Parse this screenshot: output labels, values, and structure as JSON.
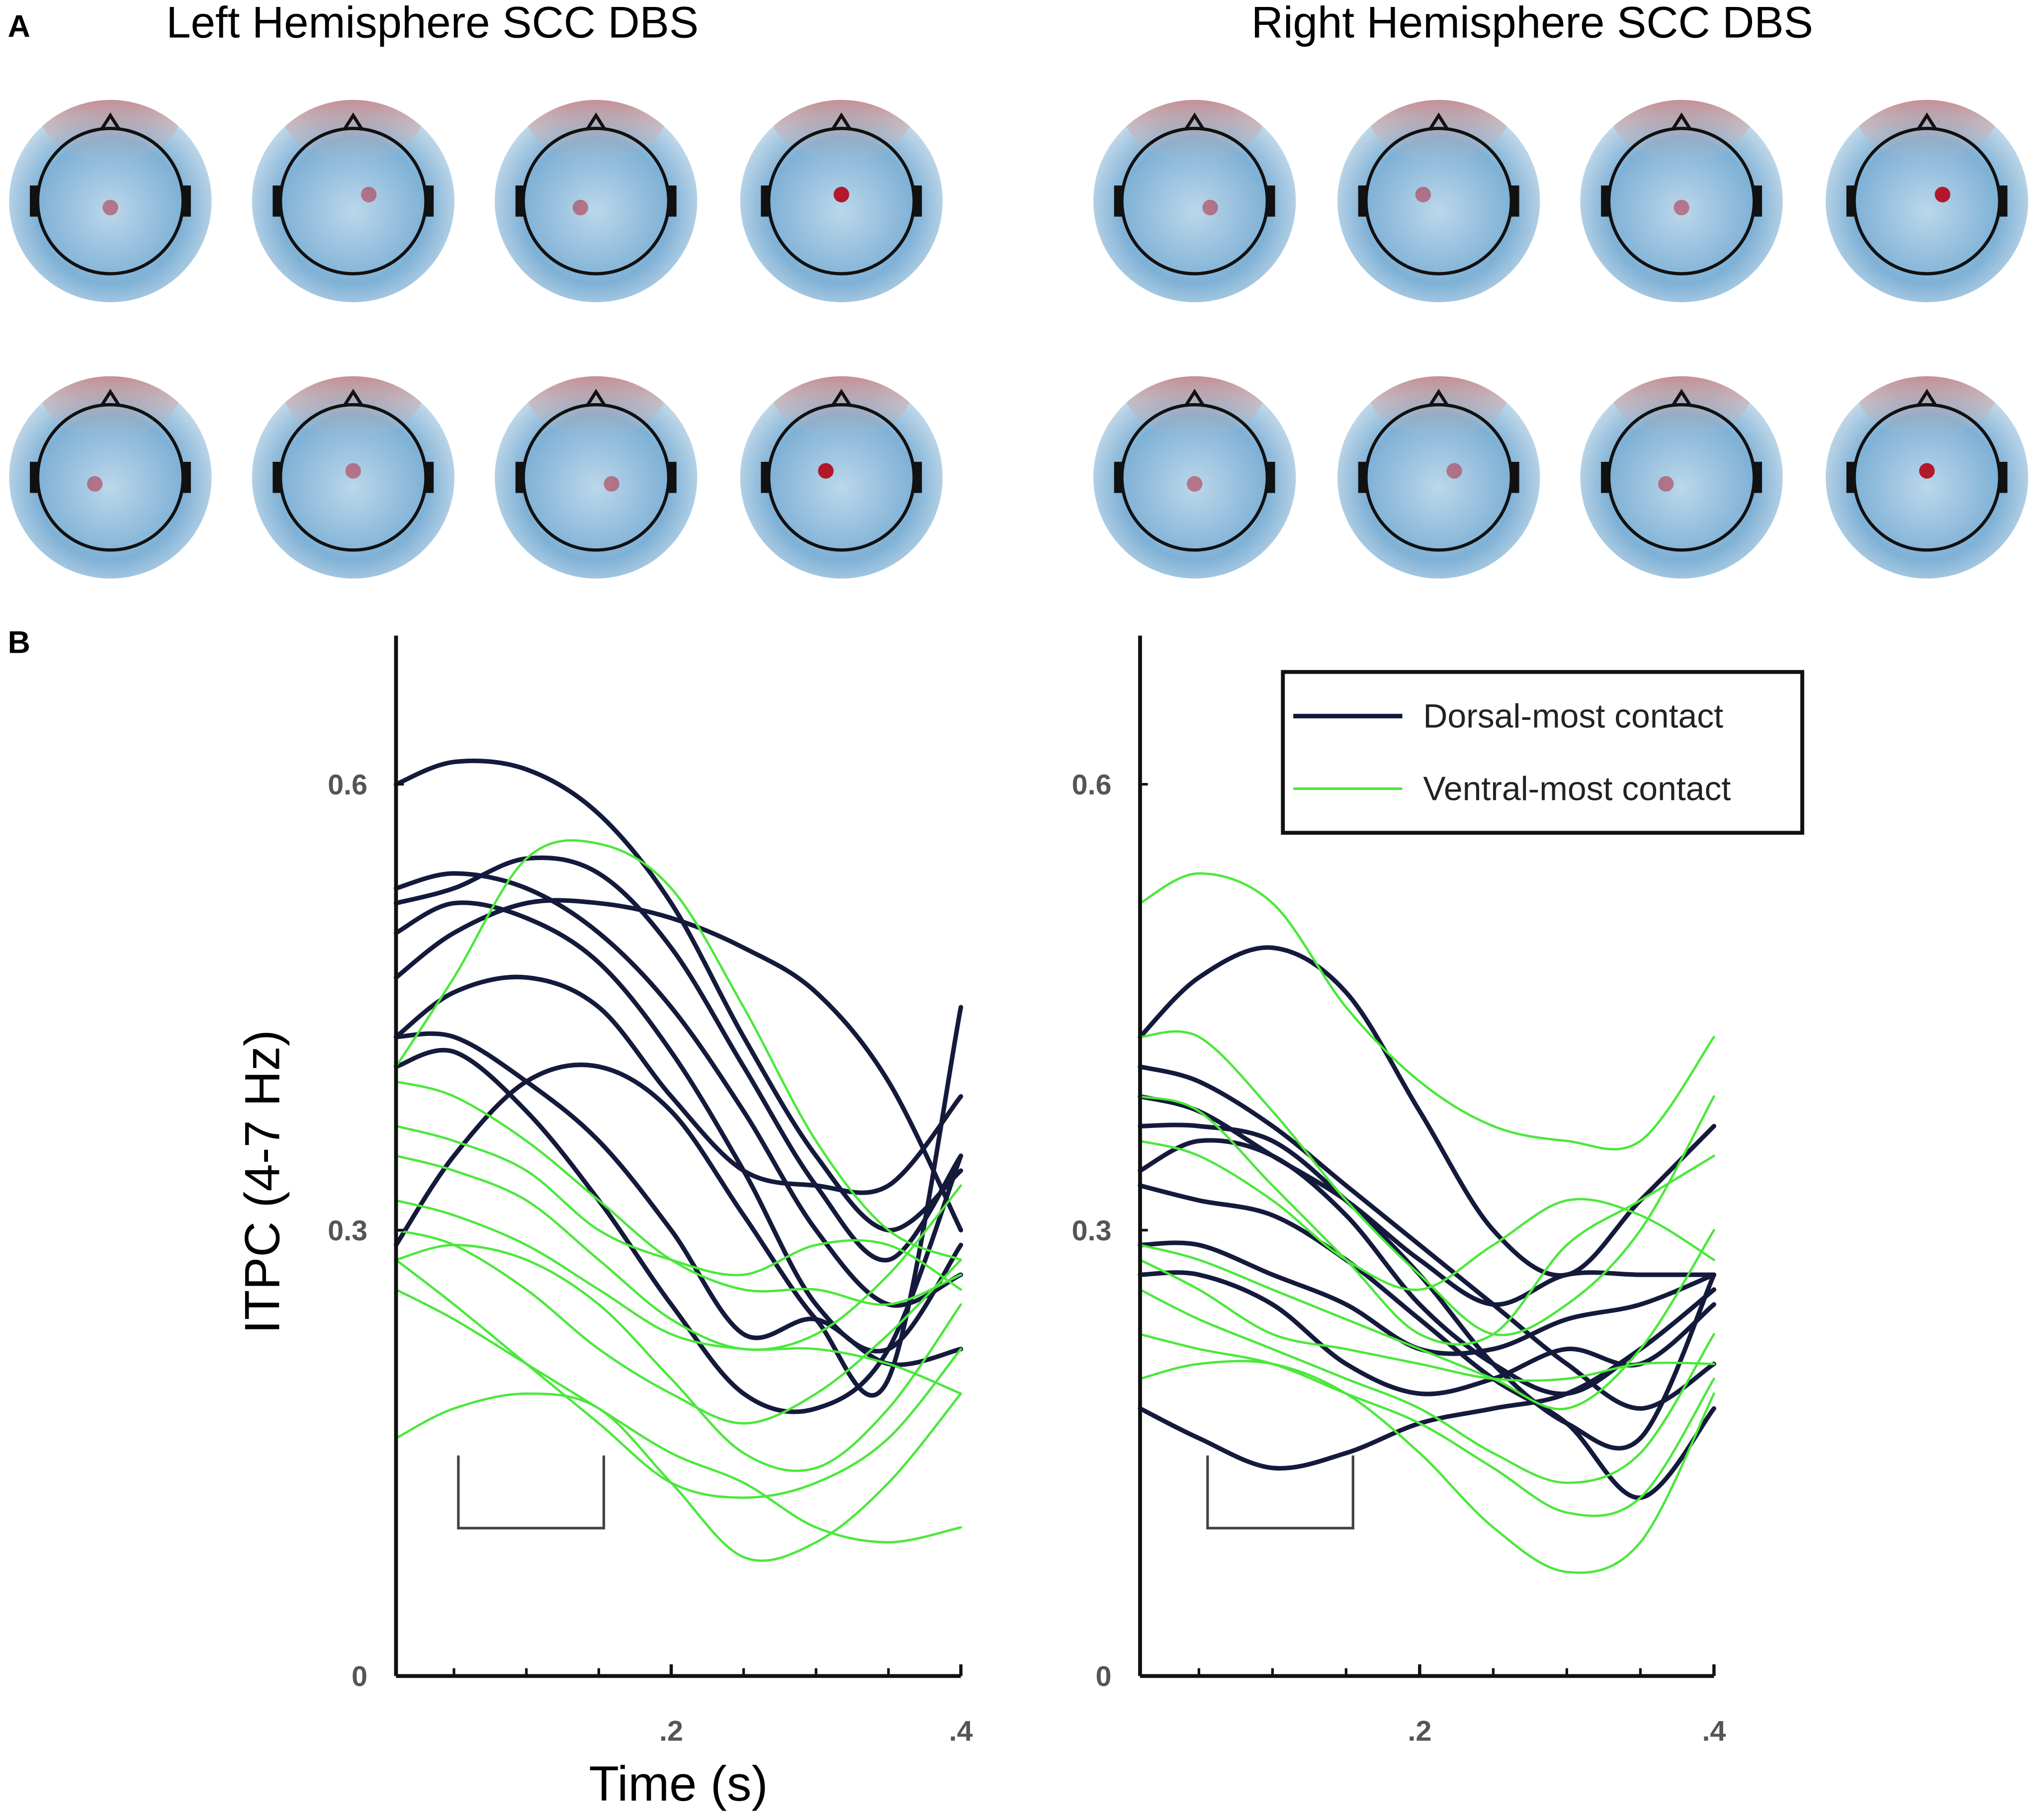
{
  "panel_labels": [
    "A",
    "B"
  ],
  "topomap_titles": [
    "Left Hemisphere SCC DBS",
    "Right Hemisphere SCC DBS"
  ],
  "chart_data": [
    {
      "type": "line",
      "xlabel": "Time (s)",
      "ylabel": "ITPC (4-7 Hz)",
      "x": [
        0.01,
        0.05,
        0.1,
        0.15,
        0.2,
        0.25,
        0.3,
        0.35,
        0.4
      ],
      "xlim": [
        0.01,
        0.4
      ],
      "xticks": [
        {
          "value": 0.2,
          "label": ".2"
        },
        {
          "value": 0.4,
          "label": ".4"
        }
      ],
      "xminorticks": [
        0.05,
        0.1,
        0.15,
        0.25,
        0.3,
        0.35
      ],
      "ylim": [
        0,
        0.7
      ],
      "yticks": [
        0,
        0.3,
        0.6
      ],
      "series": [
        {
          "color": "#141a3c",
          "values": [
            [
              0.6,
              0.615,
              0.61,
              0.58,
              0.52,
              0.43,
              0.35,
              0.3,
              0.34
            ],
            [
              0.53,
              0.54,
              0.53,
              0.5,
              0.45,
              0.38,
              0.3,
              0.25,
              0.27
            ],
            [
              0.52,
              0.53,
              0.55,
              0.54,
              0.49,
              0.41,
              0.33,
              0.28,
              0.35
            ],
            [
              0.5,
              0.52,
              0.51,
              0.48,
              0.42,
              0.34,
              0.25,
              0.22,
              0.29
            ],
            [
              0.47,
              0.5,
              0.52,
              0.52,
              0.51,
              0.49,
              0.46,
              0.4,
              0.3
            ],
            [
              0.43,
              0.46,
              0.47,
              0.45,
              0.39,
              0.34,
              0.33,
              0.33,
              0.39
            ],
            [
              0.43,
              0.43,
              0.4,
              0.36,
              0.3,
              0.23,
              0.24,
              0.21,
              0.22
            ],
            [
              0.29,
              0.35,
              0.4,
              0.41,
              0.38,
              0.31,
              0.24,
              0.2,
              0.45
            ],
            [
              0.41,
              0.42,
              0.38,
              0.32,
              0.25,
              0.19,
              0.18,
              0.22,
              0.35
            ]
          ]
        },
        {
          "color": "#4ae83a",
          "values": [
            [
              0.41,
              0.47,
              0.55,
              0.56,
              0.53,
              0.45,
              0.36,
              0.3,
              0.28
            ],
            [
              0.4,
              0.39,
              0.36,
              0.32,
              0.28,
              0.26,
              0.26,
              0.25,
              0.27
            ],
            [
              0.37,
              0.36,
              0.34,
              0.3,
              0.28,
              0.27,
              0.29,
              0.29,
              0.26
            ],
            [
              0.35,
              0.34,
              0.32,
              0.28,
              0.24,
              0.22,
              0.23,
              0.27,
              0.33
            ],
            [
              0.32,
              0.31,
              0.29,
              0.26,
              0.23,
              0.22,
              0.22,
              0.21,
              0.19
            ],
            [
              0.3,
              0.29,
              0.26,
              0.22,
              0.19,
              0.17,
              0.19,
              0.23,
              0.28
            ],
            [
              0.28,
              0.29,
              0.28,
              0.25,
              0.2,
              0.15,
              0.14,
              0.18,
              0.25
            ],
            [
              0.28,
              0.25,
              0.21,
              0.17,
              0.13,
              0.12,
              0.13,
              0.16,
              0.22
            ],
            [
              0.16,
              0.18,
              0.19,
              0.18,
              0.13,
              0.08,
              0.09,
              0.13,
              0.19
            ],
            [
              0.26,
              0.24,
              0.21,
              0.18,
              0.15,
              0.13,
              0.1,
              0.09,
              0.1
            ]
          ]
        }
      ]
    },
    {
      "type": "line",
      "x": [
        0.01,
        0.05,
        0.1,
        0.15,
        0.2,
        0.25,
        0.3,
        0.35,
        0.4
      ],
      "xlim": [
        0.01,
        0.4
      ],
      "xticks": [
        {
          "value": 0.2,
          "label": ".2"
        },
        {
          "value": 0.4,
          "label": ".4"
        }
      ],
      "xminorticks": [
        0.05,
        0.1,
        0.15,
        0.25,
        0.3,
        0.35
      ],
      "ylim": [
        0,
        0.7
      ],
      "yticks": [
        0,
        0.3,
        0.6
      ],
      "legend": "upper right",
      "series": [
        {
          "name": "Dorsal-most contact",
          "color": "#141a3c",
          "values": [
            [
              0.43,
              0.47,
              0.49,
              0.46,
              0.38,
              0.3,
              0.27,
              0.32,
              0.37
            ],
            [
              0.41,
              0.4,
              0.37,
              0.33,
              0.29,
              0.25,
              0.21,
              0.18,
              0.21
            ],
            [
              0.39,
              0.38,
              0.35,
              0.32,
              0.28,
              0.25,
              0.27,
              0.27,
              0.27
            ],
            [
              0.37,
              0.37,
              0.36,
              0.32,
              0.27,
              0.21,
              0.17,
              0.16,
              0.27
            ],
            [
              0.34,
              0.36,
              0.35,
              0.31,
              0.25,
              0.21,
              0.19,
              0.22,
              0.26
            ],
            [
              0.33,
              0.32,
              0.31,
              0.28,
              0.24,
              0.2,
              0.17,
              0.12,
              0.18
            ],
            [
              0.29,
              0.29,
              0.27,
              0.25,
              0.22,
              0.22,
              0.24,
              0.25,
              0.27
            ],
            [
              0.27,
              0.27,
              0.25,
              0.21,
              0.19,
              0.2,
              0.22,
              0.21,
              0.25
            ],
            [
              0.18,
              0.16,
              0.14,
              0.15,
              0.17,
              0.18,
              0.19,
              0.22,
              0.26
            ]
          ]
        },
        {
          "name": "Ventral-most contact",
          "color": "#4ae83a",
          "values": [
            [
              0.52,
              0.54,
              0.52,
              0.45,
              0.4,
              0.37,
              0.36,
              0.36,
              0.43
            ],
            [
              0.43,
              0.43,
              0.38,
              0.32,
              0.27,
              0.23,
              0.25,
              0.3,
              0.39
            ],
            [
              0.39,
              0.38,
              0.33,
              0.28,
              0.23,
              0.23,
              0.29,
              0.32,
              0.35
            ],
            [
              0.36,
              0.35,
              0.32,
              0.28,
              0.26,
              0.29,
              0.32,
              0.31,
              0.28
            ],
            [
              0.29,
              0.28,
              0.26,
              0.24,
              0.22,
              0.2,
              0.18,
              0.22,
              0.3
            ],
            [
              0.28,
              0.26,
              0.23,
              0.22,
              0.21,
              0.2,
              0.2,
              0.21,
              0.21
            ],
            [
              0.26,
              0.24,
              0.22,
              0.2,
              0.18,
              0.15,
              0.13,
              0.15,
              0.23
            ],
            [
              0.23,
              0.22,
              0.21,
              0.19,
              0.17,
              0.14,
              0.11,
              0.12,
              0.2
            ],
            [
              0.2,
              0.21,
              0.21,
              0.19,
              0.15,
              0.1,
              0.07,
              0.09,
              0.19
            ]
          ]
        }
      ]
    }
  ]
}
